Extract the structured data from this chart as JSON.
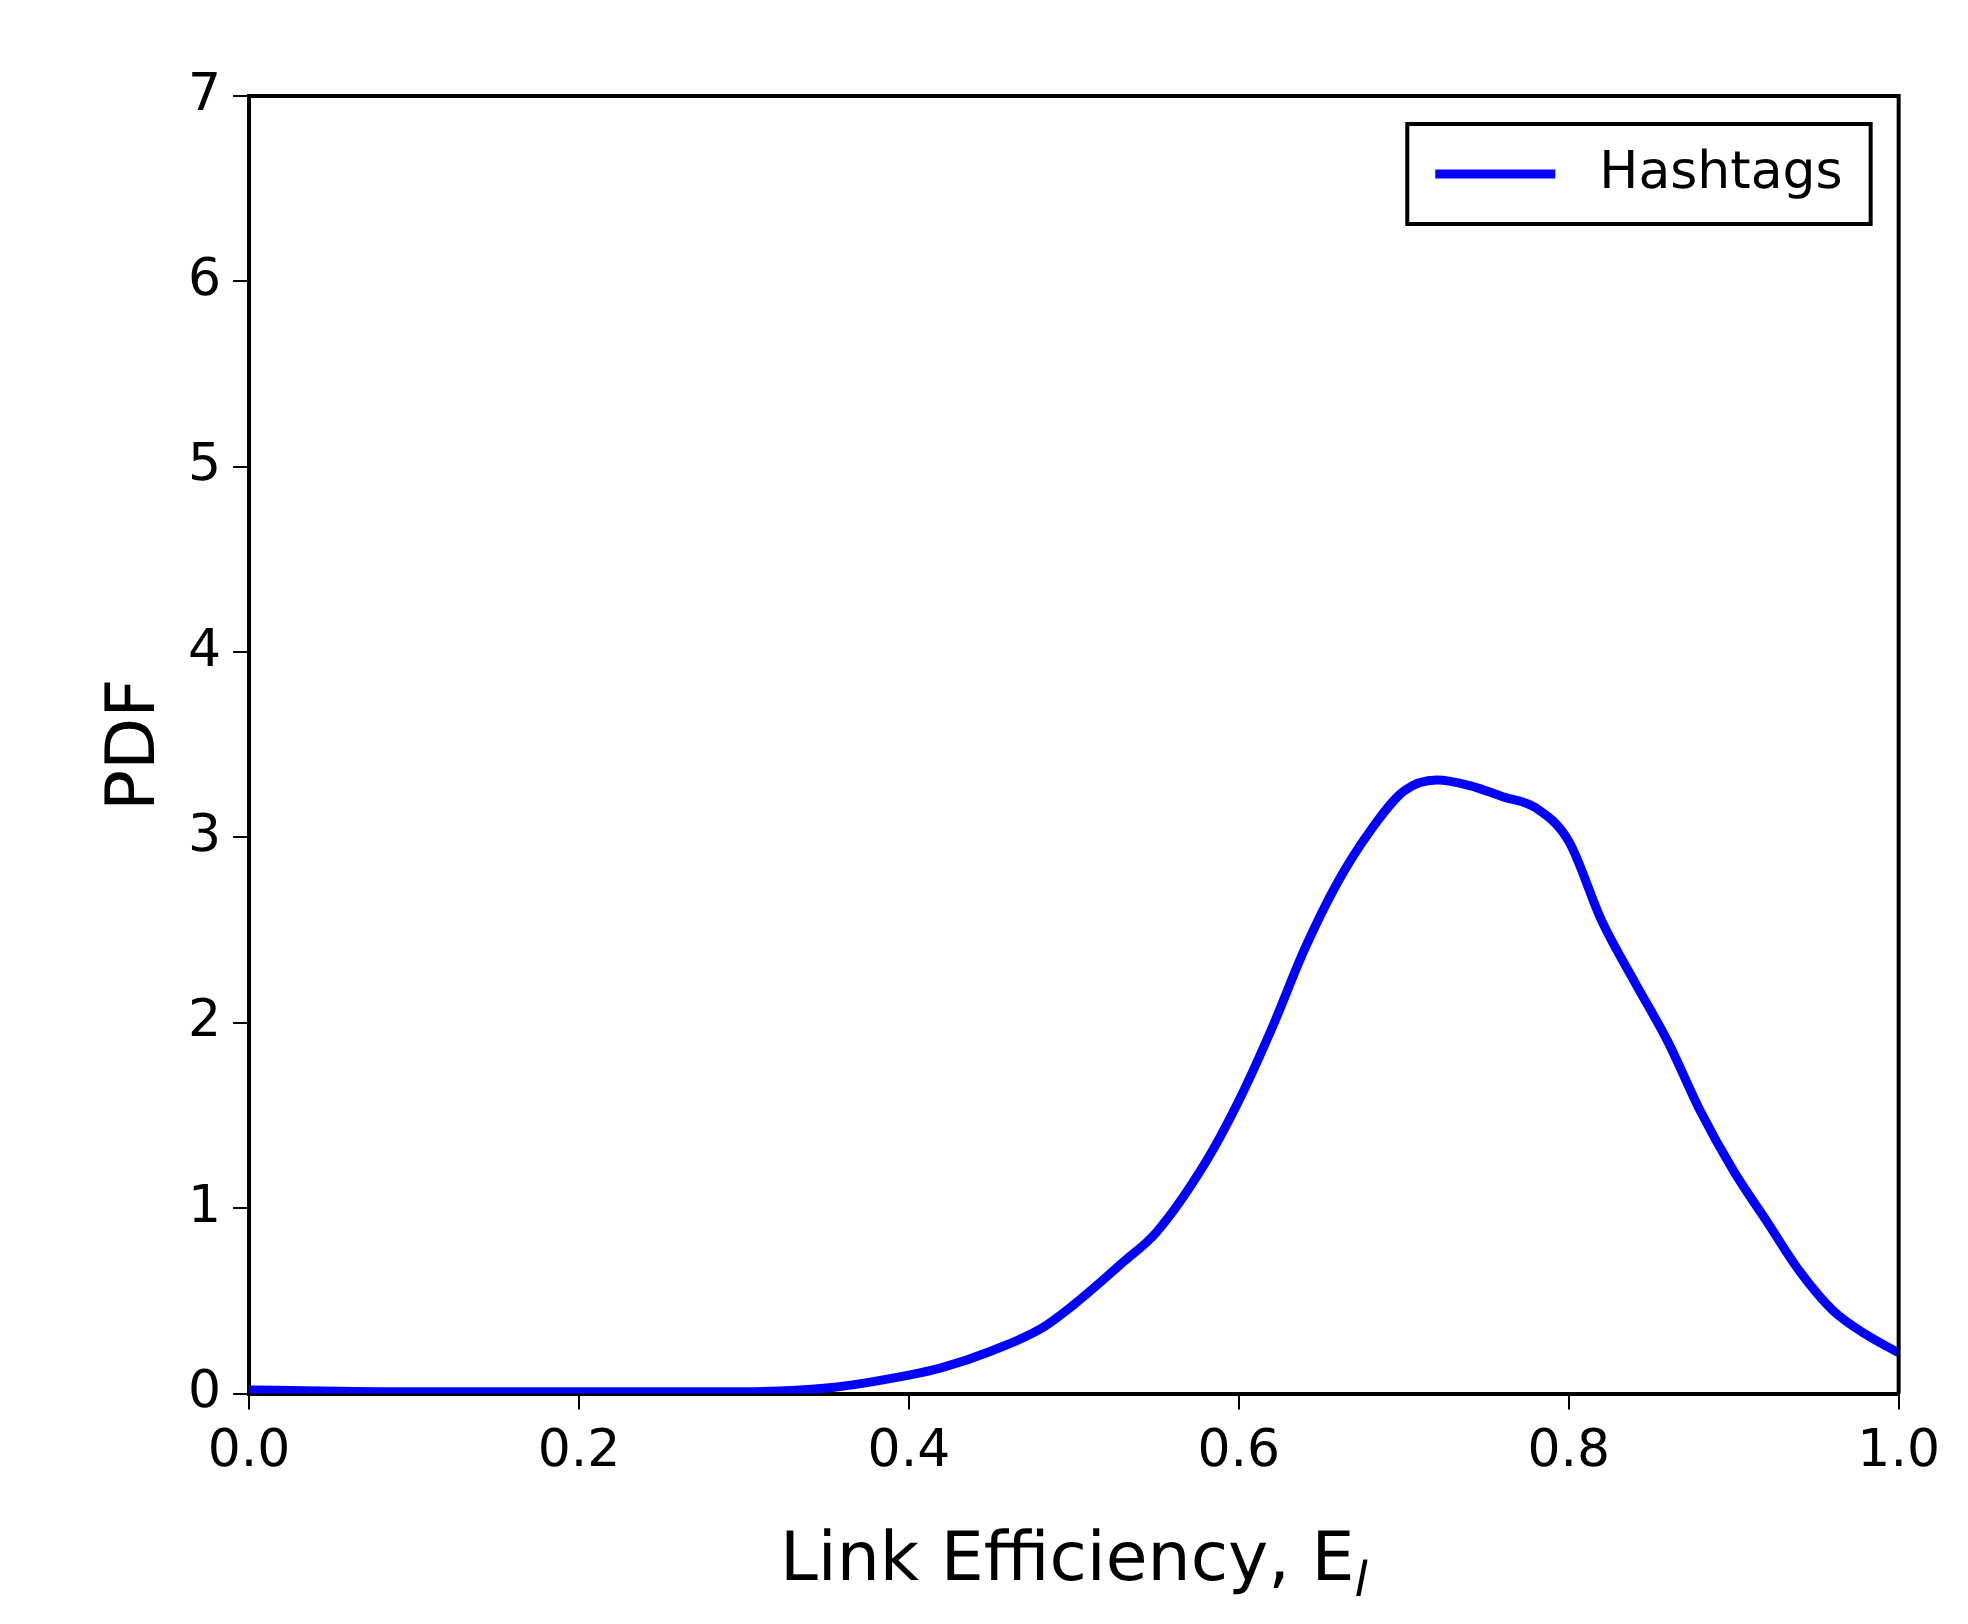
{
  "chart_data": {
    "type": "line",
    "xlabel": "Link Efficiency, E$_{l}$",
    "ylabel": "PDF",
    "series": [
      {
        "name": "Hashtags",
        "color": "#0000ff",
        "x": [
          0,
          0.1,
          0.2,
          0.3,
          0.35,
          0.4,
          0.42,
          0.45,
          0.48,
          0.5,
          0.53,
          0.55,
          0.58,
          0.6,
          0.62,
          0.64,
          0.66,
          0.68,
          0.7,
          0.72,
          0.74,
          0.76,
          0.78,
          0.8,
          0.82,
          0.84,
          0.86,
          0.88,
          0.9,
          0.92,
          0.94,
          0.96,
          0.98,
          1.0
        ],
        "values": [
          0.02,
          0.01,
          0.01,
          0.01,
          0.03,
          0.1,
          0.14,
          0.23,
          0.35,
          0.48,
          0.71,
          0.87,
          1.25,
          1.58,
          1.97,
          2.4,
          2.76,
          3.04,
          3.25,
          3.31,
          3.28,
          3.22,
          3.16,
          2.98,
          2.55,
          2.22,
          1.9,
          1.52,
          1.2,
          0.93,
          0.66,
          0.45,
          0.32,
          0.22
        ]
      }
    ],
    "xlim": [
      0,
      1
    ],
    "xticks": [
      {
        "value": 0,
        "label": "0.0"
      },
      {
        "value": 0.2,
        "label": "0.2"
      },
      {
        "value": 0.4,
        "label": "0.4"
      },
      {
        "value": 0.6,
        "label": "0.6"
      },
      {
        "value": 0.8,
        "label": "0.8"
      },
      {
        "value": 1,
        "label": "1.0"
      }
    ],
    "ylim": [
      0,
      7
    ],
    "yticks": [
      0,
      1,
      2,
      3,
      4,
      5,
      6,
      7
    ],
    "grid": false,
    "legend": "top right",
    "marker": "none",
    "line_style": "solid"
  }
}
